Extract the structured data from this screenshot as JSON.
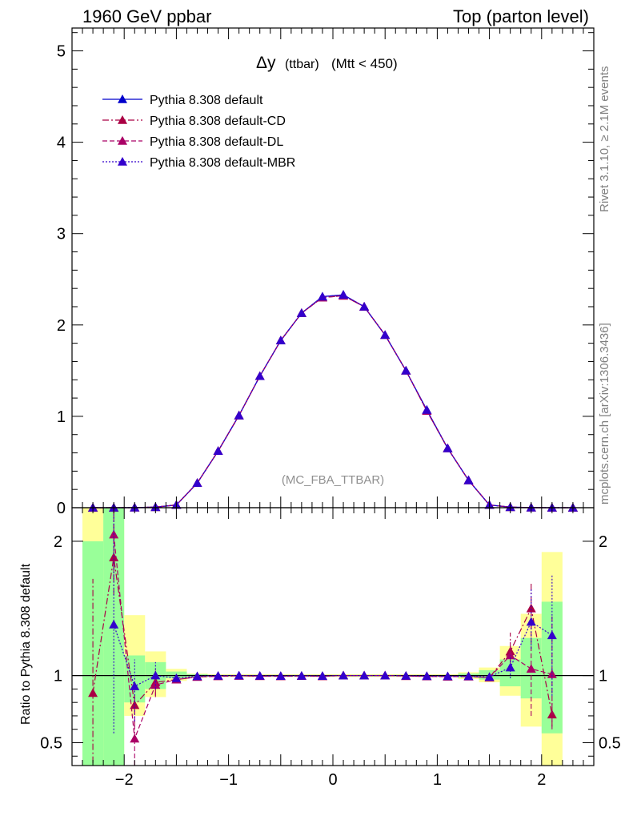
{
  "header": {
    "left": "1960 GeV ppbar",
    "right": "Top (parton level)"
  },
  "side_text": {
    "rivet": "Rivet 3.1.10, ≥ 2.1M events",
    "mcplots": "mcplots.cern.ch [arXiv:1306.3436]"
  },
  "plot_title": {
    "main": "Δy",
    "sub": "(ttbar)",
    "cut": "(Mtt < 450)"
  },
  "watermark": "(MC_FBA_TTBAR)",
  "colors": {
    "default": "#0000cc",
    "cd": "#aa0044",
    "dl": "#aa0066",
    "mbr": "#3300cc",
    "band_green": "#99ff99",
    "band_yellow": "#ffff99"
  },
  "chart_data": [
    {
      "type": "line",
      "title": "Δy (ttbar) (Mtt < 450)",
      "xlabel": "",
      "ylabel": "",
      "xlim": [
        -2.5,
        2.5
      ],
      "ylim": [
        0,
        5.25
      ],
      "x_ticks": [
        -2,
        -1,
        0,
        1,
        2
      ],
      "y_ticks": [
        0,
        1,
        2,
        3,
        4,
        5
      ],
      "legend_position": "top-left",
      "x": [
        -2.3,
        -2.1,
        -1.9,
        -1.7,
        -1.5,
        -1.3,
        -1.1,
        -0.9,
        -0.7,
        -0.5,
        -0.3,
        -0.1,
        0.1,
        0.3,
        0.5,
        0.7,
        0.9,
        1.1,
        1.3,
        1.5,
        1.7,
        1.9,
        2.1,
        2.3
      ],
      "series": [
        {
          "name": "Pythia 8.308 default",
          "style": "solid",
          "values": [
            0.0,
            0.0,
            0.001,
            0.006,
            0.03,
            0.27,
            0.62,
            1.01,
            1.44,
            1.83,
            2.13,
            2.31,
            2.33,
            2.2,
            1.89,
            1.5,
            1.07,
            0.65,
            0.3,
            0.03,
            0.006,
            0.001,
            0.0,
            0.0
          ]
        },
        {
          "name": "Pythia 8.308 default-CD",
          "style": "dashdot",
          "values": [
            0.0,
            0.0,
            0.001,
            0.006,
            0.03,
            0.27,
            0.62,
            1.01,
            1.44,
            1.83,
            2.13,
            2.3,
            2.32,
            2.2,
            1.89,
            1.5,
            1.06,
            0.65,
            0.3,
            0.03,
            0.006,
            0.001,
            0.0,
            0.0
          ]
        },
        {
          "name": "Pythia 8.308 default-DL",
          "style": "dashed",
          "values": [
            0.0,
            0.0,
            0.001,
            0.006,
            0.03,
            0.27,
            0.62,
            1.01,
            1.44,
            1.83,
            2.13,
            2.3,
            2.32,
            2.2,
            1.89,
            1.5,
            1.06,
            0.65,
            0.3,
            0.03,
            0.006,
            0.001,
            0.0,
            0.0
          ]
        },
        {
          "name": "Pythia 8.308 default-MBR",
          "style": "dotted",
          "values": [
            0.0,
            0.0,
            0.001,
            0.006,
            0.03,
            0.27,
            0.62,
            1.01,
            1.44,
            1.83,
            2.13,
            2.31,
            2.33,
            2.2,
            1.89,
            1.5,
            1.07,
            0.65,
            0.3,
            0.03,
            0.006,
            0.001,
            0.0,
            0.0
          ]
        }
      ]
    },
    {
      "type": "line",
      "title": "",
      "xlabel": "",
      "ylabel": "Ratio to Pythia 8.308 default",
      "xlim": [
        -2.5,
        2.5
      ],
      "ylim": [
        0.33,
        2.25
      ],
      "x_ticks": [
        -2,
        -1,
        0,
        1,
        2
      ],
      "y_ticks": [
        0.5,
        1,
        2
      ],
      "reference_line": 1,
      "bands": {
        "bins": [
          [
            -2.4,
            -2.2
          ],
          [
            -2.2,
            -2.0
          ],
          [
            -2.0,
            -1.8
          ],
          [
            -1.8,
            -1.6
          ],
          [
            -1.6,
            -1.4
          ],
          [
            -1.4,
            -1.2
          ],
          [
            -1.2,
            1.2
          ],
          [
            1.2,
            1.4
          ],
          [
            1.4,
            1.6
          ],
          [
            1.6,
            1.8
          ],
          [
            1.8,
            2.0
          ],
          [
            2.0,
            2.2
          ]
        ],
        "green": [
          [
            0.3,
            2.0
          ],
          [
            0.3,
            2.25
          ],
          [
            0.8,
            1.15
          ],
          [
            0.9,
            1.1
          ],
          [
            0.98,
            1.03
          ],
          [
            0.99,
            1.01
          ],
          [
            0.995,
            1.005
          ],
          [
            0.985,
            1.015
          ],
          [
            0.97,
            1.04
          ],
          [
            0.92,
            1.12
          ],
          [
            0.83,
            1.28
          ],
          [
            0.57,
            1.55
          ]
        ],
        "yellow": [
          [
            0.3,
            2.25
          ],
          [
            0.3,
            2.25
          ],
          [
            0.7,
            1.45
          ],
          [
            0.84,
            1.18
          ],
          [
            0.96,
            1.05
          ],
          [
            0.985,
            1.015
          ],
          [
            0.99,
            1.01
          ],
          [
            0.975,
            1.025
          ],
          [
            0.95,
            1.06
          ],
          [
            0.85,
            1.22
          ],
          [
            0.62,
            1.46
          ],
          [
            0.3,
            1.92
          ]
        ]
      },
      "x": [
        -2.3,
        -2.1,
        -1.9,
        -1.7,
        -1.5,
        -1.3,
        -1.1,
        -0.9,
        -0.7,
        -0.5,
        -0.3,
        -0.1,
        0.1,
        0.3,
        0.5,
        0.7,
        0.9,
        1.1,
        1.3,
        1.5,
        1.7,
        1.9,
        2.1
      ],
      "series": [
        {
          "name": "Pythia 8.308 default-CD",
          "style": "dashdot",
          "values": [
            0.87,
            1.88,
            0.78,
            0.95,
            0.97,
            0.99,
            0.995,
            0.998,
            0.996,
            0.995,
            0.997,
            0.995,
            1.0,
            1.0,
            1.0,
            0.996,
            0.994,
            0.992,
            0.993,
            0.985,
            1.18,
            1.5,
            0.71
          ],
          "errors": [
            [
              0.35,
              1.72
            ],
            [
              1.6,
              2.25
            ],
            [
              0.62,
              0.98
            ],
            [
              0.85,
              1.05
            ],
            null,
            null,
            null,
            null,
            null,
            null,
            null,
            null,
            null,
            null,
            null,
            null,
            null,
            null,
            null,
            null,
            [
              1.1,
              1.32
            ],
            [
              1.35,
              1.7
            ],
            [
              0.62,
              0.82
            ]
          ]
        },
        {
          "name": "Pythia 8.308 default-DL",
          "style": "dashed",
          "values": [
            null,
            2.05,
            0.53,
            0.93,
            0.97,
            0.99,
            0.995,
            0.998,
            0.996,
            0.995,
            0.997,
            0.995,
            1.0,
            1.0,
            1.0,
            0.996,
            0.994,
            0.992,
            0.993,
            0.985,
            1.15,
            1.05,
            1.01
          ],
          "errors": [
            null,
            [
              1.72,
              2.25
            ],
            [
              0.33,
              0.75
            ],
            [
              0.84,
              1.04
            ],
            null,
            null,
            null,
            null,
            null,
            null,
            null,
            null,
            null,
            null,
            null,
            null,
            null,
            null,
            null,
            null,
            [
              1.08,
              1.25
            ],
            [
              0.7,
              1.4
            ],
            [
              0.6,
              1.45
            ]
          ]
        },
        {
          "name": "Pythia 8.308 default-MBR",
          "style": "dotted",
          "values": [
            null,
            1.38,
            0.92,
            1.0,
            0.98,
            0.995,
            0.998,
            1.0,
            0.998,
            0.997,
            0.998,
            0.997,
            1.0,
            1.0,
            1.0,
            0.998,
            0.996,
            0.995,
            0.995,
            0.99,
            1.06,
            1.4,
            1.3
          ],
          "errors": [
            null,
            [
              0.57,
              2.2
            ],
            [
              0.66,
              1.12
            ],
            [
              0.9,
              1.1
            ],
            null,
            null,
            null,
            null,
            null,
            null,
            null,
            null,
            null,
            null,
            null,
            null,
            null,
            null,
            null,
            null,
            [
              0.98,
              1.15
            ],
            [
              1.2,
              1.65
            ],
            [
              0.85,
              1.75
            ]
          ]
        }
      ]
    }
  ]
}
